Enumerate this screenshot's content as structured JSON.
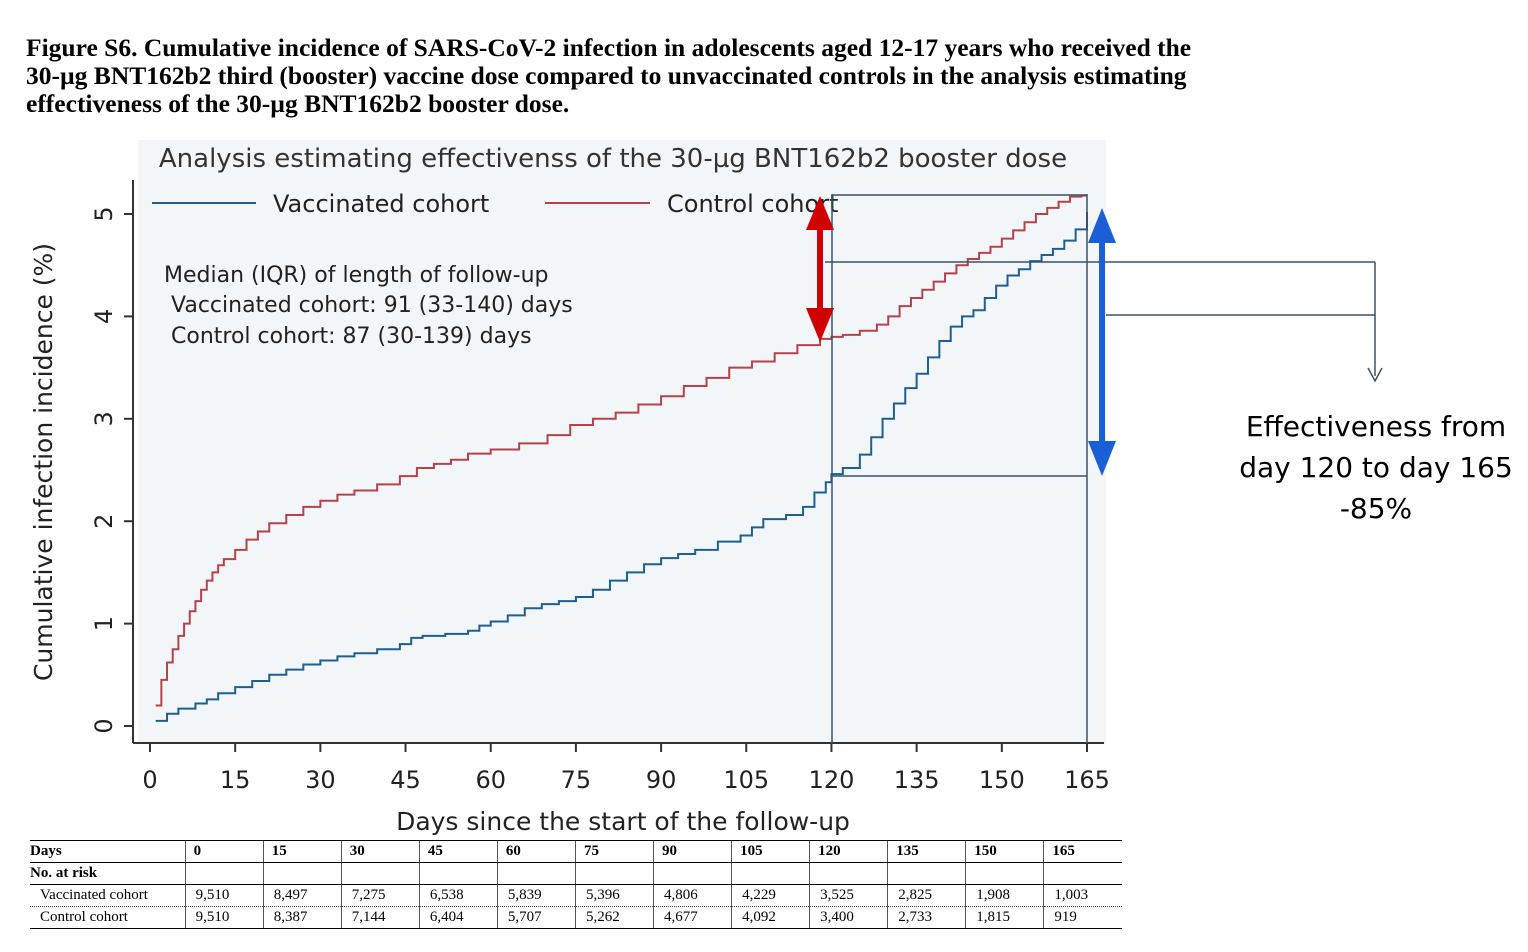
{
  "caption": "Figure S6. Cumulative incidence of SARS-CoV-2 infection in adolescents aged 12-17 years who received the 30-µg BNT162b2 third (booster) vaccine dose compared to unvaccinated controls in the analysis estimating effectiveness of the 30-µg BNT162b2 booster dose.",
  "effectiveness_annotation": {
    "line1": "Effectiveness from",
    "line2": "day 120 to day 165",
    "line3": "-85%"
  },
  "chart_data": {
    "type": "line",
    "step": true,
    "title": "Analysis estimating effectivenss of the 30-µg BNT162b2 booster dose",
    "xlabel": "Days since the start of the follow-up",
    "ylabel": "Cumulative infection incidence (%)",
    "xlim": [
      0,
      166
    ],
    "ylim": [
      0,
      5.25
    ],
    "xticks": [
      0,
      15,
      30,
      45,
      60,
      75,
      90,
      105,
      120,
      135,
      150,
      165
    ],
    "yticks": [
      0,
      1,
      2,
      3,
      4,
      5
    ],
    "grid": false,
    "legend_position": "top",
    "note_lines": [
      "Median (IQR) of length of follow-up",
      " Vaccinated cohort: 91 (33-140) days",
      " Control cohort: 87 (30-139) days"
    ],
    "series": [
      {
        "name": "Vaccinated cohort",
        "color": "#1f5f8f",
        "x": [
          1,
          3,
          5,
          8,
          10,
          12,
          15,
          18,
          21,
          24,
          27,
          30,
          33,
          36,
          40,
          44,
          46,
          48,
          52,
          56,
          58,
          60,
          63,
          66,
          69,
          72,
          75,
          78,
          81,
          84,
          87,
          90,
          93,
          96,
          100,
          104,
          106,
          108,
          112,
          115,
          117,
          119,
          120,
          122,
          125,
          127,
          129,
          131,
          133,
          135,
          137,
          139,
          141,
          143,
          145,
          147,
          149,
          151,
          153,
          155,
          157,
          159,
          161,
          163,
          165
        ],
        "y": [
          0.05,
          0.12,
          0.17,
          0.22,
          0.26,
          0.32,
          0.38,
          0.44,
          0.5,
          0.55,
          0.6,
          0.64,
          0.68,
          0.71,
          0.75,
          0.8,
          0.86,
          0.88,
          0.9,
          0.93,
          0.98,
          1.02,
          1.08,
          1.15,
          1.19,
          1.22,
          1.26,
          1.33,
          1.42,
          1.5,
          1.58,
          1.64,
          1.68,
          1.72,
          1.8,
          1.86,
          1.94,
          2.02,
          2.06,
          2.14,
          2.28,
          2.38,
          2.46,
          2.52,
          2.65,
          2.82,
          3.0,
          3.15,
          3.3,
          3.44,
          3.6,
          3.76,
          3.9,
          4.0,
          4.06,
          4.18,
          4.3,
          4.4,
          4.46,
          4.54,
          4.6,
          4.66,
          4.74,
          4.85,
          5.02
        ]
      },
      {
        "name": "Control cohort",
        "color": "#b5424a",
        "x": [
          1,
          2,
          3,
          4,
          5,
          6,
          7,
          8,
          9,
          10,
          11,
          12,
          13,
          15,
          17,
          19,
          21,
          24,
          27,
          30,
          33,
          36,
          40,
          44,
          47,
          50,
          53,
          56,
          60,
          65,
          70,
          74,
          78,
          82,
          86,
          90,
          94,
          98,
          102,
          106,
          110,
          114,
          118,
          120,
          122,
          125,
          128,
          130,
          132,
          134,
          136,
          138,
          140,
          142,
          144,
          146,
          148,
          150,
          152,
          154,
          156,
          158,
          160,
          162,
          164,
          165
        ],
        "y": [
          0.2,
          0.45,
          0.62,
          0.75,
          0.88,
          1.0,
          1.12,
          1.22,
          1.33,
          1.42,
          1.5,
          1.57,
          1.63,
          1.72,
          1.82,
          1.9,
          1.98,
          2.06,
          2.14,
          2.2,
          2.26,
          2.3,
          2.36,
          2.44,
          2.52,
          2.56,
          2.6,
          2.66,
          2.7,
          2.76,
          2.84,
          2.94,
          3.0,
          3.06,
          3.14,
          3.22,
          3.32,
          3.4,
          3.5,
          3.56,
          3.64,
          3.72,
          3.78,
          3.8,
          3.82,
          3.86,
          3.92,
          4.0,
          4.1,
          4.18,
          4.26,
          4.34,
          4.42,
          4.5,
          4.56,
          4.62,
          4.68,
          4.76,
          4.84,
          4.92,
          5.0,
          5.06,
          5.12,
          5.17,
          5.18,
          5.18
        ]
      }
    ]
  },
  "risk_table": {
    "header_label": "Days",
    "days": [
      "0",
      "15",
      "30",
      "45",
      "60",
      "75",
      "90",
      "105",
      "120",
      "135",
      "150",
      "165"
    ],
    "subheader": "No. at risk",
    "rows": [
      {
        "label": "Vaccinated cohort",
        "values": [
          "9,510",
          "8,497",
          "7,275",
          "6,538",
          "5,839",
          "5,396",
          "4,806",
          "4,229",
          "3,525",
          "2,825",
          "1,908",
          "1,003"
        ]
      },
      {
        "label": "Control cohort",
        "values": [
          "9,510",
          "8,387",
          "7,144",
          "6,404",
          "5,707",
          "5,262",
          "4,677",
          "4,092",
          "3,400",
          "2,733",
          "1,815",
          "919"
        ]
      }
    ]
  }
}
